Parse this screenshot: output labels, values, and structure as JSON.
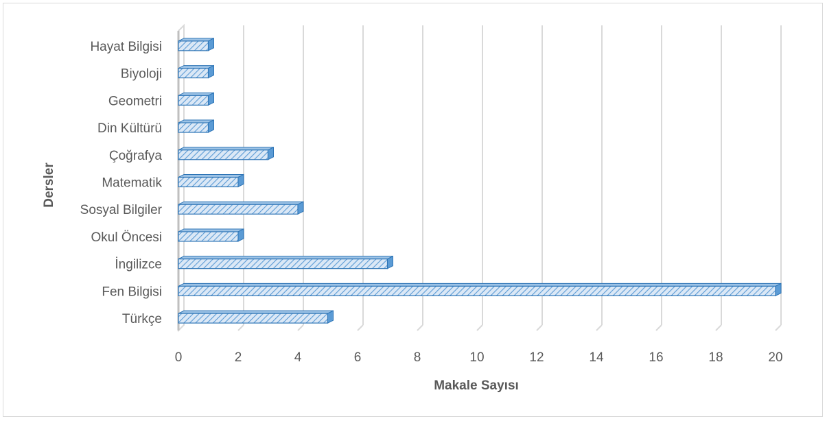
{
  "chart_data": {
    "type": "bar",
    "orientation": "horizontal",
    "style": "3d-clustered-bar",
    "title": "",
    "xlabel": "Makale Sayısı",
    "ylabel": "Dersler",
    "xlim": [
      0,
      20
    ],
    "x_ticks": [
      "0",
      "2",
      "4",
      "6",
      "8",
      "10",
      "12",
      "14",
      "16",
      "18",
      "20"
    ],
    "categories": [
      "Türkçe",
      "Fen Bilgisi",
      "İngilizce",
      "Okul Öncesi",
      "Sosyal Bilgiler",
      "Matematik",
      "Çoğrafya",
      "Din Kültürü",
      "Geometri",
      "Biyoloji",
      "Hayat Bilgisi"
    ],
    "values": [
      5,
      20,
      7,
      2,
      4,
      2,
      3,
      1,
      1,
      1,
      1
    ],
    "grid": "vertical",
    "legend": "none",
    "colors": {
      "bar_fill": "#bdd7ee",
      "bar_hatch": "#5b9bd5",
      "bar_edge": "#2e75b6",
      "grid": "#d9d9d9",
      "text": "#595959"
    }
  }
}
